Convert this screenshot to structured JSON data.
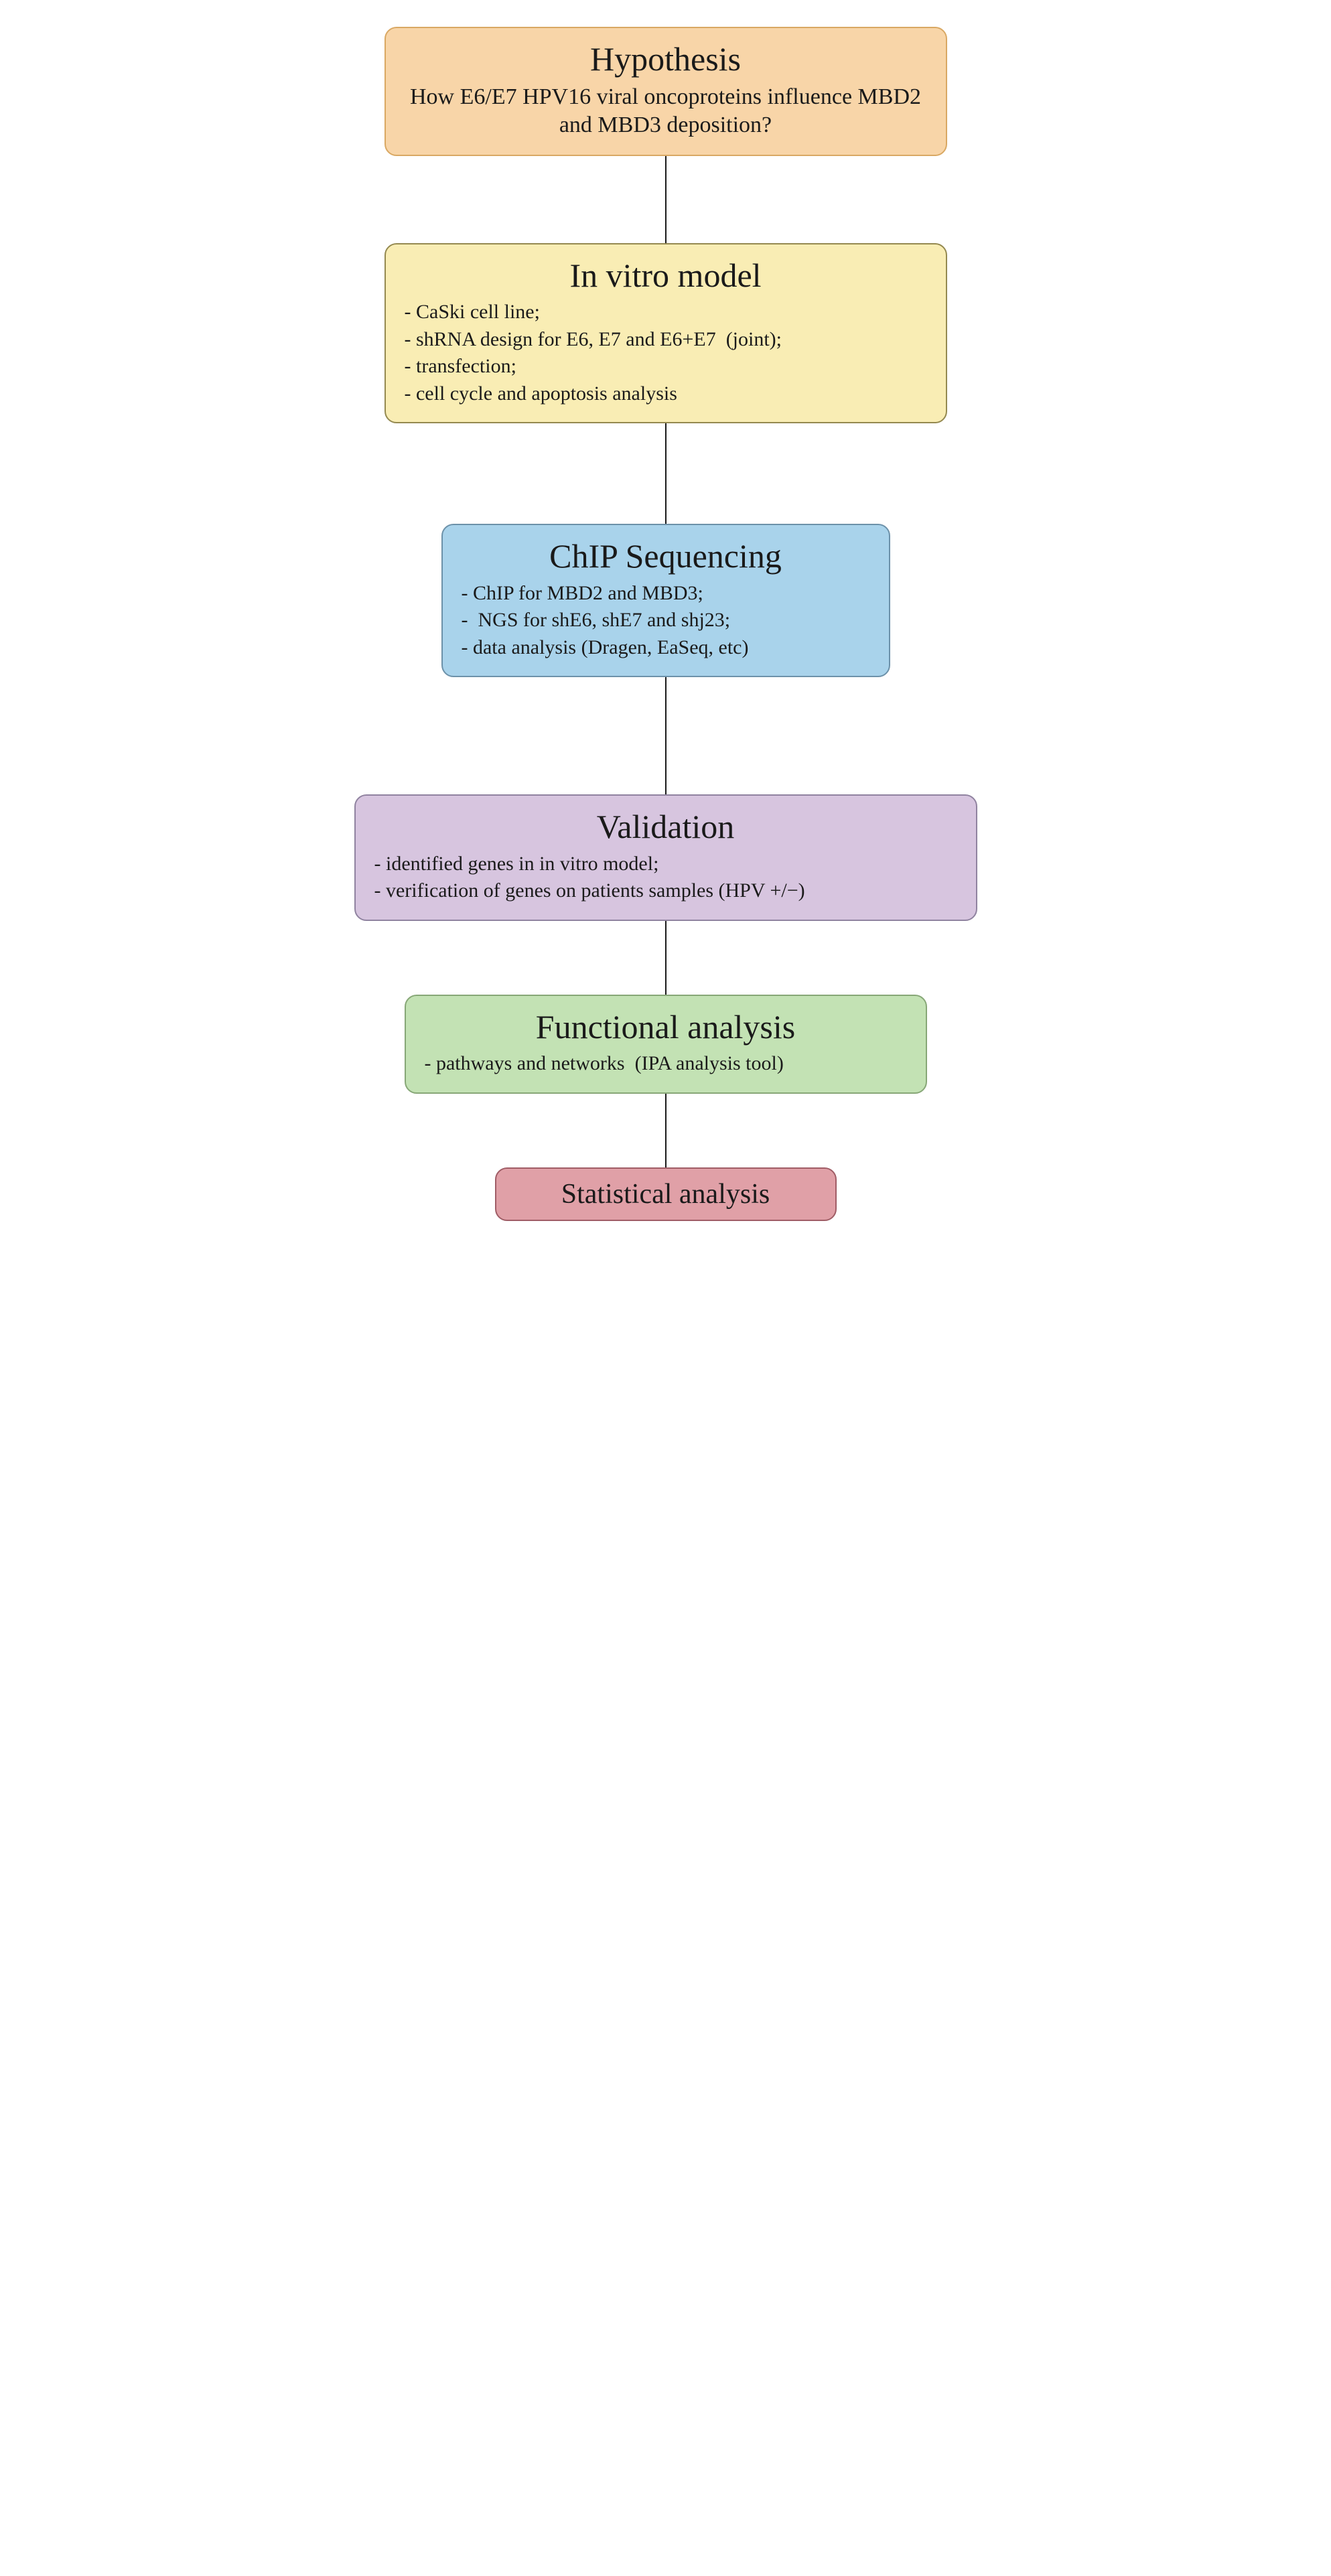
{
  "connector_color": "#1a1a1a",
  "boxes": {
    "hypothesis": {
      "title": "Hypothesis",
      "subtitle": "How E6/E7 HPV16 viral oncoproteins influence MBD2 and MBD3 deposition?",
      "fill": "#f8d5a8",
      "border": "#d9a863"
    },
    "invitro": {
      "title": "In vitro model",
      "bullets": [
        "- CaSki cell line;",
        "- shRNA design for E6, E7 and E6+E7  (joint);",
        "- transfection;",
        "- cell cycle and apoptosis analysis"
      ],
      "fill": "#f9edb4",
      "border": "#948950"
    },
    "chip": {
      "title": "ChIP Sequencing",
      "bullets": [
        "- ChIP for MBD2 and MBD3;",
        "-  NGS for shE6, shE7 and shj23;",
        "- data analysis (Dragen, EaSeq, etc)"
      ],
      "fill": "#a9d3eb",
      "border": "#6c91a9"
    },
    "validation": {
      "title": "Validation",
      "bullets": [
        "- identified genes in in vitro model;",
        "- verification of genes on patients samples (HPV +/−)"
      ],
      "fill": "#d7c5df",
      "border": "#9083a0"
    },
    "functional": {
      "title": "Functional analysis",
      "bullets": [
        "- pathways and networks  (IPA analysis tool)"
      ],
      "fill": "#c3e2b4",
      "border": "#87a777"
    },
    "stats": {
      "title": "Statistical analysis",
      "fill": "#e0a0a7",
      "border": "#a05d66"
    }
  },
  "connectors": {
    "after_hypothesis": 130,
    "after_invitro": 150,
    "after_chip": 175,
    "after_validation": 110,
    "after_functional": 110
  }
}
